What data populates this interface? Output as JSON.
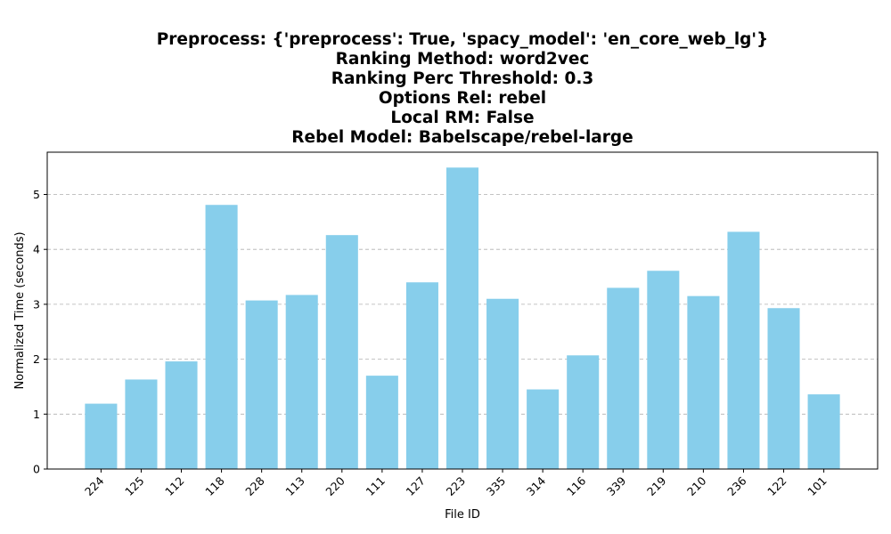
{
  "chart_data": {
    "type": "bar",
    "title_lines": [
      "Preprocess: {'preprocess': True, 'spacy_model': 'en_core_web_lg'}",
      "Ranking Method: word2vec",
      "Ranking Perc Threshold: 0.3",
      "Options Rel: rebel",
      "Local RM: False",
      "Rebel Model: Babelscape/rebel-large"
    ],
    "xlabel": "File ID",
    "ylabel": "Normalized Time (seconds)",
    "categories": [
      "224",
      "125",
      "112",
      "118",
      "228",
      "113",
      "220",
      "111",
      "127",
      "223",
      "335",
      "314",
      "116",
      "339",
      "219",
      "210",
      "236",
      "122",
      "101"
    ],
    "values": [
      1.19,
      1.63,
      1.96,
      4.81,
      3.07,
      3.17,
      4.26,
      1.7,
      3.4,
      5.49,
      3.1,
      1.45,
      2.07,
      3.3,
      3.61,
      3.15,
      4.32,
      2.93,
      1.36
    ],
    "ylim": [
      0,
      5.77
    ],
    "yticks": [
      0,
      1,
      2,
      3,
      4,
      5
    ],
    "grid": "y-dashed",
    "bar_color": "#87ceeb",
    "x_tick_rotation": 45
  }
}
